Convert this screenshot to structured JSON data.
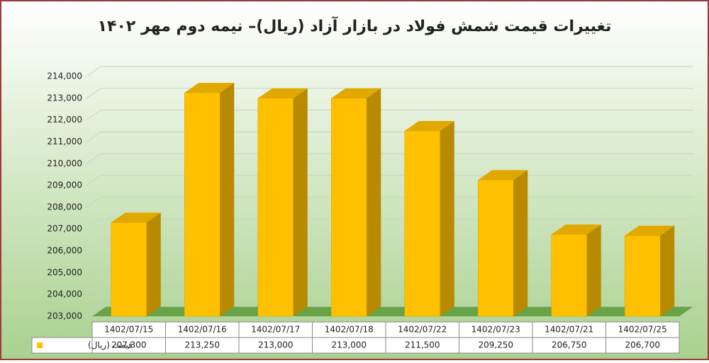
{
  "chart_data": {
    "type": "bar3d",
    "title": "تغییرات قیمت شمش فولاد در بازار آزاد (ریال)– نیمه دوم مهر ۱۴۰۲",
    "categories": [
      "1402/07/15",
      "1402/07/16",
      "1402/07/17",
      "1402/07/18",
      "1402/07/22",
      "1402/07/23",
      "1402/07/21",
      "1402/07/25"
    ],
    "series": [
      {
        "name": "قیمت (ریال)",
        "color": "#ffc000",
        "values": [
          207300,
          213250,
          213000,
          213000,
          211500,
          209250,
          206750,
          206700
        ],
        "value_labels": [
          "207,300",
          "213,250",
          "213,000",
          "213,000",
          "211,500",
          "209,250",
          "206,750",
          "206,700"
        ]
      }
    ],
    "ylim": [
      203000,
      214000
    ],
    "yticks": [
      {
        "value": 203000,
        "label": "203,000"
      },
      {
        "value": 204000,
        "label": "204,000"
      },
      {
        "value": 205000,
        "label": "205,000"
      },
      {
        "value": 206000,
        "label": "206,000"
      },
      {
        "value": 207000,
        "label": "207,000"
      },
      {
        "value": 208000,
        "label": "208,000"
      },
      {
        "value": 209000,
        "label": "209,000"
      },
      {
        "value": 210000,
        "label": "210,000"
      },
      {
        "value": 211000,
        "label": "211,000"
      },
      {
        "value": 212000,
        "label": "212,000"
      },
      {
        "value": 213000,
        "label": "213,000"
      },
      {
        "value": 214000,
        "label": "214,000"
      }
    ],
    "grid": true
  }
}
